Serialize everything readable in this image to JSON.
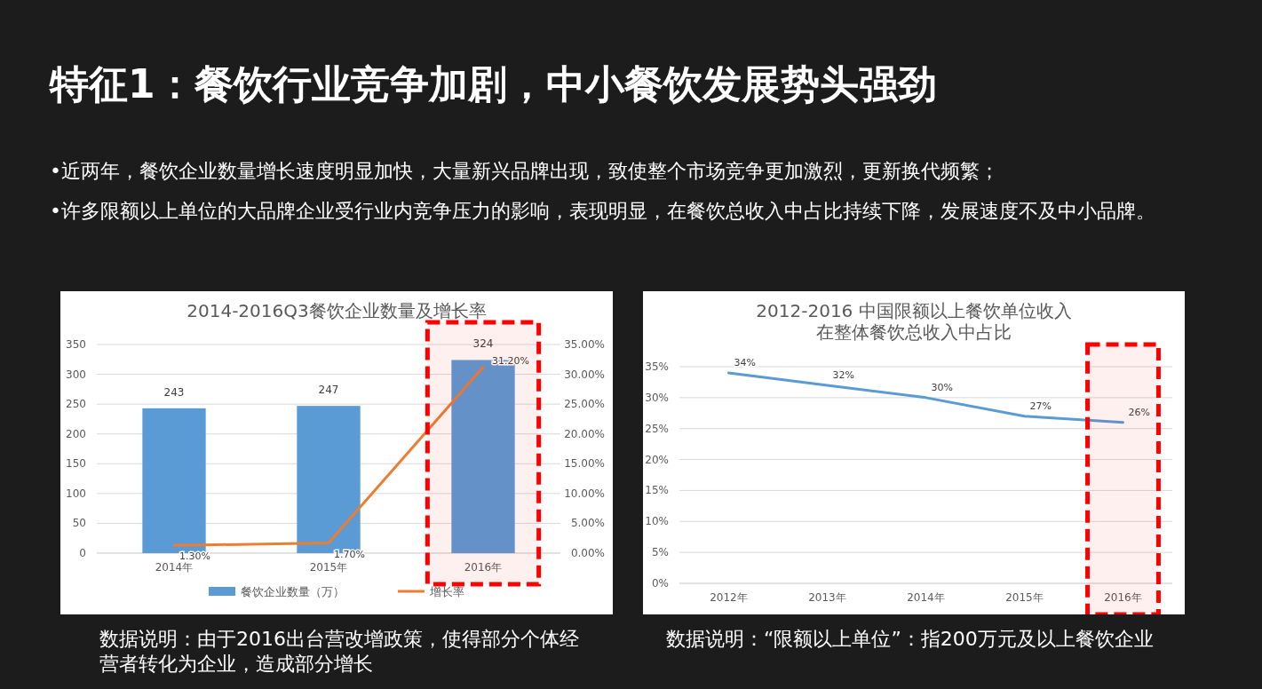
{
  "chart_data": [
    {
      "type": "other",
      "title": "特征1：餐饮行业竞争加剧，中小餐饮发展势头强劲",
      "annotations": [
        "•近两年，餐饮企业数量增长速度明显加快，大量新兴品牌出现，致使整个市场竞争更加激烈，更新换代频繁；",
        "•许多限额以上单位的大品牌企业受行业内竞争压力的影响，表现明显，在餐饮总收入中占比持续下降，发展速度不及中小品牌。"
      ]
    },
    {
      "type": "bar",
      "title": "2014-2016Q3餐饮企业数量及增长率",
      "categories": [
        "2014年",
        "2015年",
        "2016年"
      ],
      "series": [
        {
          "name": "餐饮企业数量（万）",
          "type": "bar",
          "color": "#5b9bd5",
          "values": [
            243,
            247,
            324
          ],
          "value_labels": [
            "243",
            "247",
            "324"
          ]
        },
        {
          "name": "增长率",
          "type": "line",
          "axis": "y2",
          "color": "#ed7d31",
          "values": [
            1.3,
            1.7,
            31.2
          ],
          "value_labels": [
            "1.30%",
            "1.70%",
            "31.20%"
          ]
        }
      ],
      "ylim": [
        0,
        350
      ],
      "yticks": [
        0,
        50,
        100,
        150,
        200,
        250,
        300,
        350
      ],
      "y2lim": [
        0,
        35
      ],
      "y2ticks": [
        {
          "value": 0,
          "label": "0.00%"
        },
        {
          "value": 5,
          "label": "5.00%"
        },
        {
          "value": 10,
          "label": "10.00%"
        },
        {
          "value": 15,
          "label": "15.00%"
        },
        {
          "value": 20,
          "label": "20.00%"
        },
        {
          "value": 25,
          "label": "25.00%"
        },
        {
          "value": 30,
          "label": "30.00%"
        },
        {
          "value": 35,
          "label": "35.00%"
        }
      ],
      "grid": "y",
      "legend": "bottom",
      "marker": "none",
      "bands": [
        {
          "axis": "x",
          "from": "2016年",
          "to": "2016年",
          "color": "#ff0000"
        }
      ],
      "annotations": [
        "数据说明：由于2016出台营改增政策，使得部分个体经营者转化为企业，造成部分增长"
      ]
    },
    {
      "type": "line",
      "title": "2012-2016 中国限额以上餐饮单位收入在整体餐饮总收入中占比",
      "categories": [
        "2012年",
        "2013年",
        "2014年",
        "2015年",
        "2016年"
      ],
      "series": [
        {
          "color": "#5b9bd5",
          "values": [
            34,
            32,
            30,
            27,
            26
          ],
          "value_labels": [
            "34%",
            "32%",
            "30%",
            "27%",
            "26%"
          ]
        }
      ],
      "ylim": [
        0,
        35
      ],
      "yticks": [
        {
          "value": 0,
          "label": "0%"
        },
        {
          "value": 5,
          "label": "5%"
        },
        {
          "value": 10,
          "label": "10%"
        },
        {
          "value": 15,
          "label": "15%"
        },
        {
          "value": 20,
          "label": "20%"
        },
        {
          "value": 25,
          "label": "25%"
        },
        {
          "value": 30,
          "label": "30%"
        },
        {
          "value": 35,
          "label": "35%"
        }
      ],
      "grid": "y",
      "legend": false,
      "marker": "none",
      "bands": [
        {
          "axis": "x",
          "from": "2016年",
          "to": "2016年",
          "color": "#ff0000"
        }
      ],
      "annotations": [
        "数据说明：“限额以上单位”：指200万元及以上餐饮企业"
      ]
    }
  ]
}
